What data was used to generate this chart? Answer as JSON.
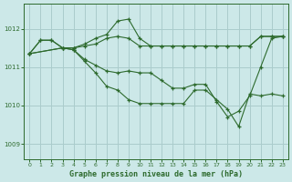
{
  "background_color": "#cce8e8",
  "grid_color": "#aacccc",
  "line_color": "#2d6a2d",
  "marker_color": "#2d6a2d",
  "title": "Graphe pression niveau de la mer (hPa)",
  "ylabel_ticks": [
    1009,
    1010,
    1011,
    1012
  ],
  "xlim": [
    -0.5,
    23.5
  ],
  "ylim": [
    1008.6,
    1012.65
  ],
  "series": [
    {
      "x": [
        0,
        1,
        2,
        3,
        4,
        5,
        6,
        7,
        8,
        9,
        10,
        11,
        12,
        13,
        14,
        15,
        16,
        17,
        18,
        19,
        20,
        21,
        22,
        23
      ],
      "y": [
        1011.35,
        1011.7,
        1011.7,
        1011.5,
        1011.5,
        1011.55,
        1011.6,
        1011.75,
        1011.8,
        1011.75,
        1011.55,
        1011.55,
        1011.55,
        1011.55,
        1011.55,
        1011.55,
        1011.55,
        1011.55,
        1011.55,
        1011.55,
        1011.55,
        1011.8,
        1011.8,
        1011.8
      ]
    },
    {
      "x": [
        0,
        1,
        2,
        3,
        4,
        5,
        6,
        7,
        8,
        9,
        10,
        11,
        12,
        13,
        14,
        15,
        16,
        17,
        18,
        19,
        20,
        21,
        22,
        23
      ],
      "y": [
        1011.35,
        1011.7,
        1011.7,
        1011.5,
        1011.5,
        1011.6,
        1011.75,
        1011.85,
        1012.2,
        1012.25,
        1011.75,
        1011.55,
        1011.55,
        1011.55,
        1011.55,
        1011.55,
        1011.55,
        1011.55,
        1011.55,
        1011.55,
        1011.55,
        1011.8,
        1011.8,
        1011.8
      ]
    },
    {
      "x": [
        0,
        3,
        4,
        5,
        6,
        7,
        8,
        9,
        10,
        11,
        12,
        13,
        14,
        15,
        16,
        17,
        18,
        19,
        20,
        21,
        22,
        23
      ],
      "y": [
        1011.35,
        1011.5,
        1011.45,
        1011.2,
        1011.05,
        1010.9,
        1010.85,
        1010.9,
        1010.85,
        1010.85,
        1010.65,
        1010.45,
        1010.45,
        1010.55,
        1010.55,
        1010.1,
        1009.7,
        1009.85,
        1010.25,
        1011.0,
        1011.75,
        1011.8
      ]
    },
    {
      "x": [
        0,
        3,
        4,
        5,
        6,
        7,
        8,
        9,
        10,
        11,
        12,
        13,
        14,
        15,
        16,
        17,
        18,
        19,
        20,
        21,
        22,
        23
      ],
      "y": [
        1011.35,
        1011.5,
        1011.45,
        1011.15,
        1010.85,
        1010.5,
        1010.4,
        1010.15,
        1010.05,
        1010.05,
        1010.05,
        1010.05,
        1010.05,
        1010.4,
        1010.4,
        1010.15,
        1009.9,
        1009.45,
        1010.3,
        1010.25,
        1010.3,
        1010.25
      ]
    }
  ]
}
